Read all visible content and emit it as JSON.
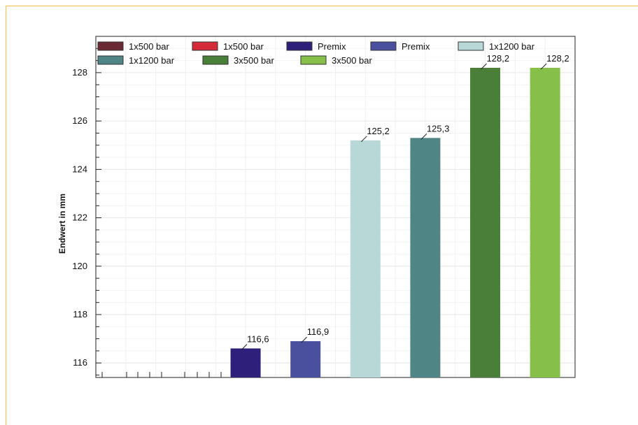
{
  "chart_data": {
    "type": "bar",
    "title": "",
    "xlabel": "",
    "ylabel": "Endwert in mm",
    "ylim": [
      115.4,
      129.5
    ],
    "yticks": [
      "116",
      "118",
      "120",
      "122",
      "124",
      "126",
      "128"
    ],
    "grid": true,
    "legend_position": "top",
    "series": [
      {
        "name": "1x500 bar",
        "color": "#6b2a33",
        "value": null
      },
      {
        "name": "1x500 bar",
        "color": "#d42a3a",
        "value": null
      },
      {
        "name": "Premix",
        "color": "#2e1f7a",
        "value": 116.6,
        "label": "116,6"
      },
      {
        "name": "Premix",
        "color": "#4a4f9e",
        "value": 116.9,
        "label": "116,9"
      },
      {
        "name": "1x1200 bar",
        "color": "#b8d8d8",
        "value": 125.2,
        "label": "125,2"
      },
      {
        "name": "1x1200 bar",
        "color": "#4f8585",
        "value": 125.3,
        "label": "125,3"
      },
      {
        "name": "3x500 bar",
        "color": "#4a7f3a",
        "value": 128.2,
        "label": "128,2"
      },
      {
        "name": "3x500 bar",
        "color": "#86bf4a",
        "value": 128.2,
        "label": "128,2"
      }
    ]
  }
}
